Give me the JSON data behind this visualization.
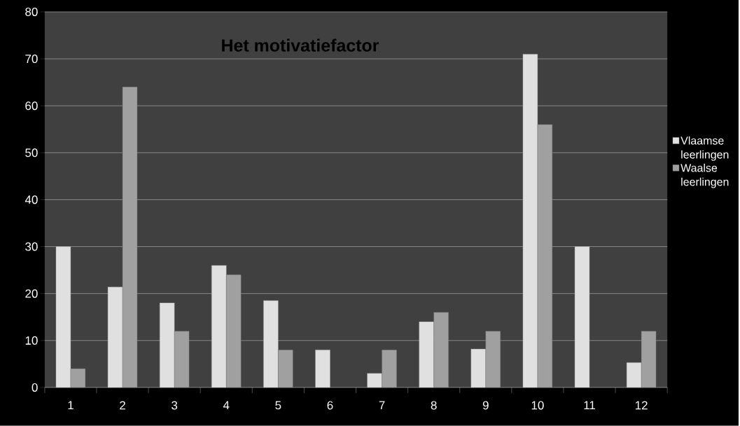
{
  "chart_data": {
    "type": "bar",
    "title": "Het motivatiefactor",
    "categories": [
      "1",
      "2",
      "3",
      "4",
      "5",
      "6",
      "7",
      "8",
      "9",
      "10",
      "11",
      "12"
    ],
    "series": [
      {
        "name": "Vlaamse leerlingen",
        "color": "#e0e0e0",
        "values": [
          30,
          21.4,
          18,
          26,
          18.5,
          8,
          3,
          14,
          8.2,
          71,
          30,
          5.3
        ]
      },
      {
        "name": "Waalse leerlingen",
        "color": "#a0a0a0",
        "values": [
          4,
          64,
          12,
          24,
          8,
          null,
          8,
          16,
          12,
          56,
          null,
          12
        ]
      }
    ],
    "ylim": [
      0,
      80
    ],
    "yticks": [
      0,
      10,
      20,
      30,
      40,
      50,
      60,
      70,
      80
    ],
    "grid": "y",
    "legend": "right"
  }
}
